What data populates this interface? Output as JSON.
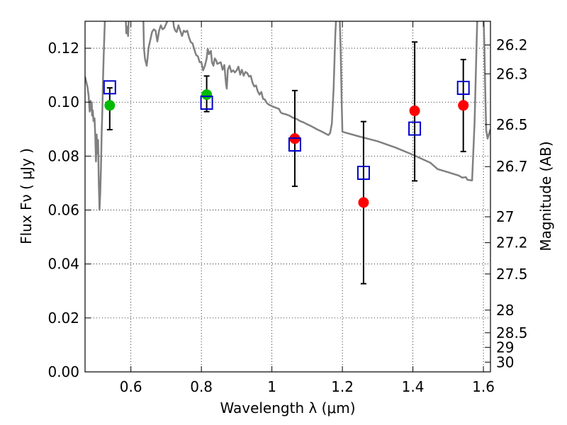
{
  "chart_data": {
    "type": "scatter",
    "title": "",
    "xlabel": "Wavelength  λ (μm)",
    "ylabel": "Flux  Fν  ( μJy )",
    "ylabel_right": "Magnitude (AB)",
    "xlim": [
      0.47,
      1.62
    ],
    "ylim": [
      0,
      0.13
    ],
    "grid": true,
    "x_ticks": [
      0.6,
      0.8,
      1.0,
      1.2,
      1.4,
      1.6
    ],
    "x_tick_labels": [
      "0.6",
      "0.8",
      "1",
      "1.2",
      "1.4",
      "1.6"
    ],
    "y_ticks": [
      0,
      0.02,
      0.04,
      0.06,
      0.08,
      0.1,
      0.12
    ],
    "y_tick_labels": [
      "0.00",
      "0.02",
      "0.04",
      "0.06",
      "0.08",
      "0.10",
      "0.12"
    ],
    "right_ticks": [
      {
        "flux": 0.1212,
        "label": "26.2"
      },
      {
        "flux": 0.1105,
        "label": "26.3"
      },
      {
        "flux": 0.0917,
        "label": "26.5"
      },
      {
        "flux": 0.0761,
        "label": "26.7"
      },
      {
        "flux": 0.0575,
        "label": "27"
      },
      {
        "flux": 0.0479,
        "label": "27.2"
      },
      {
        "flux": 0.0363,
        "label": "27.5"
      },
      {
        "flux": 0.0229,
        "label": "28"
      },
      {
        "flux": 0.0145,
        "label": "28.5"
      },
      {
        "flux": 0.0091,
        "label": "29"
      },
      {
        "flux": 0.0036,
        "label": "30"
      }
    ],
    "colors": {
      "model": "#808080",
      "green": "#00bb00",
      "red": "#ff0000",
      "square": "#0000cc",
      "errorbar": "#000000"
    },
    "series": [
      {
        "name": "Model spectrum",
        "kind": "line",
        "points": [
          [
            0.47,
            0.1095
          ],
          [
            0.477,
            0.1055
          ],
          [
            0.48,
            0.1025
          ],
          [
            0.483,
            0.0965
          ],
          [
            0.485,
            0.1005
          ],
          [
            0.487,
            0.097
          ],
          [
            0.489,
            0.1
          ],
          [
            0.49,
            0.095
          ],
          [
            0.492,
            0.097
          ],
          [
            0.494,
            0.093
          ],
          [
            0.497,
            0.094
          ],
          [
            0.499,
            0.0875
          ],
          [
            0.501,
            0.078
          ],
          [
            0.503,
            0.088
          ],
          [
            0.505,
            0.081
          ],
          [
            0.507,
            0.086
          ],
          [
            0.509,
            0.07
          ],
          [
            0.511,
            0.06
          ],
          [
            0.513,
            0.066
          ],
          [
            0.515,
            0.075
          ],
          [
            0.517,
            0.088
          ],
          [
            0.519,
            0.097
          ],
          [
            0.521,
            0.109
          ],
          [
            0.523,
            0.118
          ],
          [
            0.525,
            0.126
          ],
          [
            0.527,
            0.133
          ],
          [
            0.585,
            0.133
          ],
          [
            0.587,
            0.1255
          ],
          [
            0.59,
            0.128
          ],
          [
            0.592,
            0.1245
          ],
          [
            0.595,
            0.133
          ],
          [
            0.635,
            0.133
          ],
          [
            0.637,
            0.12
          ],
          [
            0.64,
            0.116
          ],
          [
            0.645,
            0.1135
          ],
          [
            0.648,
            0.117
          ],
          [
            0.65,
            0.12
          ],
          [
            0.655,
            0.123
          ],
          [
            0.66,
            0.126
          ],
          [
            0.665,
            0.127
          ],
          [
            0.67,
            0.1265
          ],
          [
            0.675,
            0.1225
          ],
          [
            0.68,
            0.1265
          ],
          [
            0.685,
            0.1285
          ],
          [
            0.69,
            0.127
          ],
          [
            0.695,
            0.1275
          ],
          [
            0.7,
            0.129
          ],
          [
            0.705,
            0.1305
          ],
          [
            0.71,
            0.133
          ],
          [
            0.718,
            0.133
          ],
          [
            0.722,
            0.128
          ],
          [
            0.726,
            0.1265
          ],
          [
            0.73,
            0.126
          ],
          [
            0.735,
            0.1285
          ],
          [
            0.74,
            0.1265
          ],
          [
            0.745,
            0.1245
          ],
          [
            0.75,
            0.1265
          ],
          [
            0.755,
            0.126
          ],
          [
            0.76,
            0.1265
          ],
          [
            0.765,
            0.124
          ],
          [
            0.77,
            0.1222
          ],
          [
            0.775,
            0.1218
          ],
          [
            0.78,
            0.1195
          ],
          [
            0.785,
            0.1175
          ],
          [
            0.79,
            0.117
          ],
          [
            0.795,
            0.1148
          ],
          [
            0.8,
            0.1148
          ],
          [
            0.805,
            0.1118
          ],
          [
            0.81,
            0.1135
          ],
          [
            0.815,
            0.1162
          ],
          [
            0.818,
            0.1198
          ],
          [
            0.822,
            0.1178
          ],
          [
            0.827,
            0.119
          ],
          [
            0.83,
            0.1148
          ],
          [
            0.834,
            0.1135
          ],
          [
            0.838,
            0.1162
          ],
          [
            0.842,
            0.1155
          ],
          [
            0.845,
            0.1142
          ],
          [
            0.85,
            0.1145
          ],
          [
            0.855,
            0.1148
          ],
          [
            0.86,
            0.112
          ],
          [
            0.865,
            0.1138
          ],
          [
            0.87,
            0.1065
          ],
          [
            0.872,
            0.105
          ],
          [
            0.875,
            0.112
          ],
          [
            0.88,
            0.1135
          ],
          [
            0.885,
            0.1112
          ],
          [
            0.89,
            0.1118
          ],
          [
            0.895,
            0.111
          ],
          [
            0.9,
            0.1118
          ],
          [
            0.905,
            0.1132
          ],
          [
            0.91,
            0.1102
          ],
          [
            0.915,
            0.112
          ],
          [
            0.92,
            0.1098
          ],
          [
            0.925,
            0.1112
          ],
          [
            0.93,
            0.1108
          ],
          [
            0.935,
            0.1095
          ],
          [
            0.94,
            0.1098
          ],
          [
            0.945,
            0.1072
          ],
          [
            0.95,
            0.1058
          ],
          [
            0.955,
            0.1062
          ],
          [
            0.96,
            0.104
          ],
          [
            0.965,
            0.1028
          ],
          [
            0.97,
            0.1038
          ],
          [
            0.975,
            0.1012
          ],
          [
            0.98,
            0.101
          ],
          [
            0.985,
            0.0998
          ],
          [
            0.99,
            0.0992
          ],
          [
            1.0,
            0.0985
          ],
          [
            1.01,
            0.098
          ],
          [
            1.02,
            0.0975
          ],
          [
            1.025,
            0.0962
          ],
          [
            1.03,
            0.0958
          ],
          [
            1.04,
            0.0955
          ],
          [
            1.05,
            0.095
          ],
          [
            1.06,
            0.0942
          ],
          [
            1.07,
            0.0938
          ],
          [
            1.08,
            0.093
          ],
          [
            1.09,
            0.0925
          ],
          [
            1.1,
            0.0918
          ],
          [
            1.11,
            0.0912
          ],
          [
            1.12,
            0.0905
          ],
          [
            1.13,
            0.0898
          ],
          [
            1.14,
            0.0892
          ],
          [
            1.15,
            0.0885
          ],
          [
            1.16,
            0.0878
          ],
          [
            1.165,
            0.0885
          ],
          [
            1.17,
            0.092
          ],
          [
            1.175,
            0.105
          ],
          [
            1.18,
            0.125
          ],
          [
            1.183,
            0.133
          ],
          [
            1.192,
            0.133
          ],
          [
            1.195,
            0.12
          ],
          [
            1.198,
            0.1
          ],
          [
            1.2,
            0.089
          ],
          [
            1.22,
            0.0883
          ],
          [
            1.25,
            0.0872
          ],
          [
            1.3,
            0.0855
          ],
          [
            1.35,
            0.0832
          ],
          [
            1.4,
            0.0805
          ],
          [
            1.45,
            0.0775
          ],
          [
            1.47,
            0.0752
          ],
          [
            1.5,
            0.074
          ],
          [
            1.53,
            0.0728
          ],
          [
            1.54,
            0.072
          ],
          [
            1.55,
            0.0722
          ],
          [
            1.555,
            0.0712
          ],
          [
            1.568,
            0.071
          ],
          [
            1.575,
            0.0925
          ],
          [
            1.58,
            0.118
          ],
          [
            1.583,
            0.133
          ],
          [
            1.6,
            0.133
          ],
          [
            1.603,
            0.12
          ],
          [
            1.606,
            0.1
          ],
          [
            1.608,
            0.0895
          ],
          [
            1.612,
            0.0865
          ],
          [
            1.62,
            0.09
          ]
        ]
      },
      {
        "name": "Green points",
        "kind": "circle",
        "points": [
          {
            "x": 0.54,
            "y": 0.0988
          },
          {
            "x": 0.815,
            "y": 0.1028
          }
        ]
      },
      {
        "name": "Red points",
        "kind": "circle",
        "points": [
          {
            "x": 1.065,
            "y": 0.0865
          },
          {
            "x": 1.26,
            "y": 0.0628
          },
          {
            "x": 1.405,
            "y": 0.0968
          },
          {
            "x": 1.543,
            "y": 0.0988
          }
        ]
      },
      {
        "name": "Observed flux",
        "kind": "square",
        "points": [
          {
            "x": 0.54,
            "y": 0.1055,
            "yerr_low": 0.0898,
            "yerr_high": 0.1053
          },
          {
            "x": 0.815,
            "y": 0.0998,
            "yerr_low": 0.0965,
            "yerr_high": 0.1097
          },
          {
            "x": 1.065,
            "y": 0.0843,
            "yerr_low": 0.0688,
            "yerr_high": 0.1043
          },
          {
            "x": 1.26,
            "y": 0.0738,
            "yerr_low": 0.0327,
            "yerr_high": 0.0928
          },
          {
            "x": 1.405,
            "y": 0.0902,
            "yerr_low": 0.0708,
            "yerr_high": 0.1223
          },
          {
            "x": 1.543,
            "y": 0.1053,
            "yerr_low": 0.0817,
            "yerr_high": 0.1158
          }
        ]
      }
    ]
  }
}
